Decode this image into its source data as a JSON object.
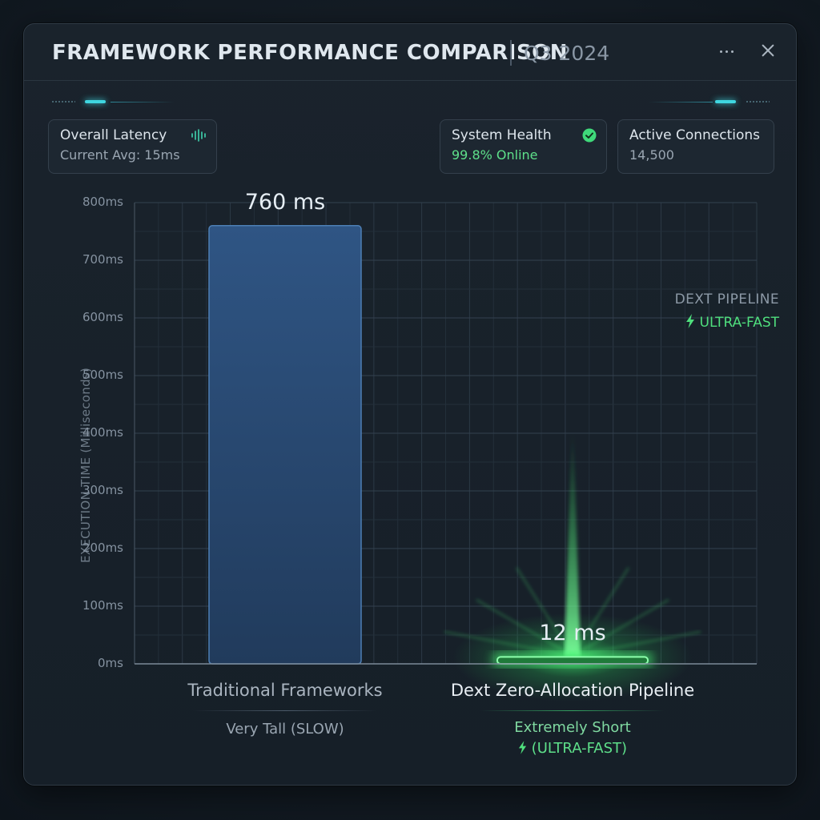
{
  "header": {
    "title": "FRAMEWORK PERFORMANCE COMPARISON",
    "period": "Q3 2024"
  },
  "cards": {
    "latency": {
      "title": "Overall Latency",
      "value": "Current Avg: 15ms"
    },
    "health": {
      "title": "System Health",
      "value": "99.8% Online"
    },
    "connections": {
      "title": "Active Connections",
      "value": "14,500"
    }
  },
  "annotation": {
    "title": "DEXT PIPELINE",
    "badge": "ULTRA-FAST"
  },
  "categories_text": [
    {
      "label": "Traditional Frameworks",
      "desc_line1": "Very Tall (SLOW)",
      "desc_line2": ""
    },
    {
      "label": "Dext Zero-Allocation Pipeline",
      "desc_line1": "Extremely Short",
      "desc_line2": "(ULTRA-FAST)"
    }
  ],
  "colors": {
    "bar_slow": "#2a4a72",
    "bar_slow_border": "#4d7fb5",
    "bar_fast": "#39e06a",
    "accent_cyan": "#3fd6e0",
    "accent_green": "#4fdf7d"
  },
  "icons": {
    "latency": "waveform-icon",
    "health": "check-circle-icon",
    "annotation": "lightning-bolt-icon"
  },
  "chart_data": {
    "type": "bar",
    "ylabel": "EXECUTION TIME (Milliseconds)",
    "ylim": [
      0,
      800
    ],
    "yticks": [
      0,
      100,
      200,
      300,
      400,
      500,
      600,
      700,
      800
    ],
    "ytick_labels": [
      "0ms",
      "100ms",
      "200ms",
      "300ms",
      "400ms",
      "500ms",
      "600ms",
      "700ms",
      "800ms"
    ],
    "categories": [
      "Traditional Frameworks",
      "Dext Zero-Allocation Pipeline"
    ],
    "values": [
      760,
      12
    ],
    "data_labels": [
      "760 ms",
      "12 ms"
    ],
    "grid": true
  }
}
